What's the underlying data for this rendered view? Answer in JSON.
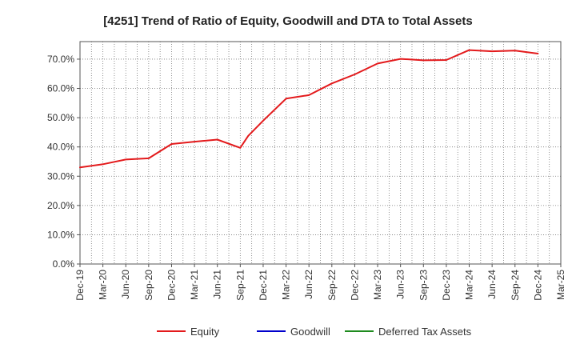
{
  "chart_data": {
    "type": "line",
    "title": "[4251]  Trend of Ratio of Equity, Goodwill and DTA to Total Assets",
    "xlabel": "",
    "ylabel": "",
    "ylim": [
      0,
      76
    ],
    "yticks": [
      0,
      10,
      20,
      30,
      40,
      50,
      60,
      70
    ],
    "ytick_labels": [
      "0.0%",
      "10.0%",
      "20.0%",
      "30.0%",
      "40.0%",
      "50.0%",
      "60.0%",
      "70.0%"
    ],
    "x_tick_labels": [
      "Dec-19",
      "Mar-20",
      "Jun-20",
      "Sep-20",
      "Dec-20",
      "Mar-21",
      "Jun-21",
      "Sep-21",
      "Dec-21",
      "Mar-22",
      "Jun-22",
      "Sep-22",
      "Dec-22",
      "Mar-23",
      "Jun-23",
      "Sep-23",
      "Dec-23",
      "Mar-24",
      "Jun-24",
      "Sep-24",
      "Dec-24",
      "Mar-25"
    ],
    "grid": true,
    "legend_position": "bottom",
    "series": [
      {
        "name": "Equity",
        "color": "#e31a1c",
        "x": [
          "Dec-19",
          "Mar-20",
          "Jun-20",
          "Sep-20",
          "Dec-20",
          "Mar-21",
          "Jun-21",
          "Sep-21",
          "Oct-21",
          "Dec-21",
          "Mar-22",
          "Jun-22",
          "Sep-22",
          "Dec-22",
          "Mar-23",
          "Jun-23",
          "Sep-23",
          "Dec-23",
          "Mar-24",
          "Jun-24",
          "Sep-24",
          "Dec-24"
        ],
        "x_index": [
          0,
          1,
          2,
          3,
          4,
          5,
          6,
          7,
          7.35,
          8,
          9,
          10,
          11,
          12,
          13,
          14,
          15,
          16,
          17,
          18,
          19,
          20
        ],
        "values": [
          33.0,
          34.1,
          35.7,
          36.1,
          41.0,
          41.8,
          42.5,
          39.7,
          43.8,
          49.0,
          56.5,
          57.7,
          61.7,
          64.8,
          68.5,
          70.1,
          69.6,
          69.7,
          73.1,
          72.7,
          72.9,
          71.9
        ]
      },
      {
        "name": "Goodwill",
        "color": "#0000cc",
        "x": [],
        "values": []
      },
      {
        "name": "Deferred Tax Assets",
        "color": "#1f8b1f",
        "x": [],
        "values": []
      }
    ]
  }
}
